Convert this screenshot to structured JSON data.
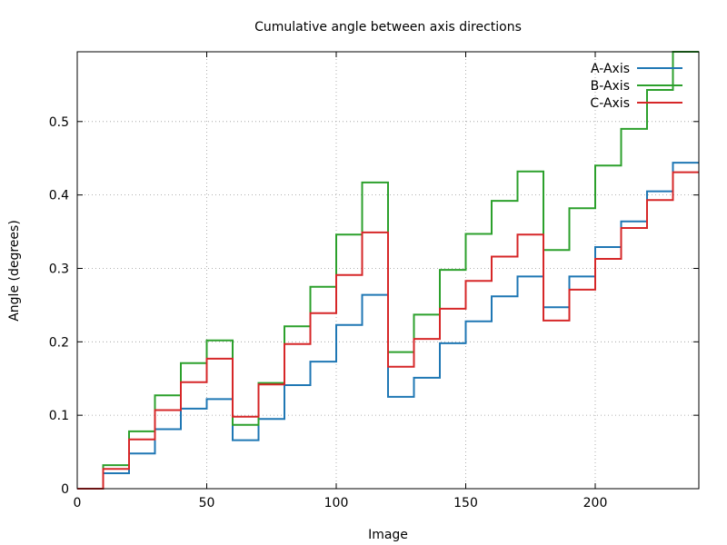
{
  "chart_data": {
    "type": "line",
    "step": true,
    "title": "Cumulative angle between axis directions",
    "xlabel": "Image",
    "ylabel": "Angle (degrees)",
    "xlim": [
      0,
      240
    ],
    "ylim": [
      0,
      0.595
    ],
    "grid": true,
    "legend_position": "top-right",
    "xticks": [
      0,
      50,
      100,
      150,
      200
    ],
    "yticks": [
      0,
      0.1,
      0.2,
      0.3,
      0.4,
      0.5
    ],
    "ytick_labels": [
      "0",
      "0.1",
      "0.2",
      "0.3",
      "0.4",
      "0.5"
    ],
    "step_starts": [
      0,
      10,
      20,
      30,
      40,
      50,
      60,
      70,
      80,
      90,
      100,
      110,
      120,
      130,
      140,
      150,
      160,
      170,
      180,
      190,
      200,
      210,
      220,
      230
    ],
    "series": [
      {
        "name": "A-Axis",
        "color": "#1f77b4",
        "values": [
          0.0,
          0.021,
          0.048,
          0.081,
          0.109,
          0.122,
          0.066,
          0.095,
          0.141,
          0.173,
          0.223,
          0.264,
          0.125,
          0.151,
          0.198,
          0.228,
          0.262,
          0.289,
          0.247,
          0.289,
          0.329,
          0.364,
          0.405,
          0.444
        ]
      },
      {
        "name": "B-Axis",
        "color": "#2ca02c",
        "values": [
          0.0,
          0.032,
          0.078,
          0.127,
          0.171,
          0.202,
          0.087,
          0.144,
          0.221,
          0.275,
          0.346,
          0.417,
          0.186,
          0.237,
          0.298,
          0.347,
          0.392,
          0.432,
          0.325,
          0.382,
          0.44,
          0.49,
          0.543,
          0.595
        ]
      },
      {
        "name": "C-Axis",
        "color": "#d62728",
        "values": [
          0.0,
          0.027,
          0.067,
          0.107,
          0.145,
          0.177,
          0.098,
          0.142,
          0.197,
          0.239,
          0.291,
          0.349,
          0.166,
          0.204,
          0.245,
          0.283,
          0.316,
          0.346,
          0.229,
          0.271,
          0.313,
          0.355,
          0.393,
          0.431
        ]
      }
    ]
  }
}
